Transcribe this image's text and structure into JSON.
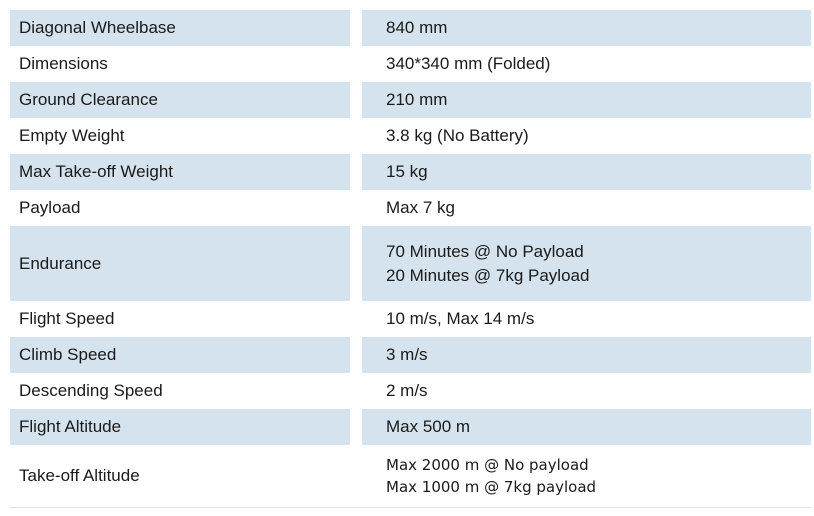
{
  "table": {
    "colors": {
      "row_highlight": "#d5e3ee",
      "text": "#1a1a1a",
      "background": "#ffffff"
    },
    "rows": [
      {
        "label": "Diagonal Wheelbase",
        "value_lines": [
          "840 mm"
        ],
        "highlighted": true
      },
      {
        "label": "Dimensions",
        "value_lines": [
          "340*340 mm (Folded)"
        ],
        "highlighted": false
      },
      {
        "label": "Ground Clearance",
        "value_lines": [
          "210 mm"
        ],
        "highlighted": true
      },
      {
        "label": "Empty Weight",
        "value_lines": [
          "3.8 kg (No Battery)"
        ],
        "highlighted": false
      },
      {
        "label": "Max Take-off Weight",
        "value_lines": [
          "15 kg"
        ],
        "highlighted": true
      },
      {
        "label": "Payload",
        "value_lines": [
          "Max 7 kg"
        ],
        "highlighted": false
      },
      {
        "label": "Endurance",
        "value_lines": [
          "70 Minutes @ No Payload",
          "20 Minutes @ 7kg Payload"
        ],
        "highlighted": true
      },
      {
        "label": "Flight Speed",
        "value_lines": [
          "10 m/s, Max 14 m/s"
        ],
        "highlighted": false
      },
      {
        "label": "Climb Speed",
        "value_lines": [
          "3 m/s"
        ],
        "highlighted": true
      },
      {
        "label": "Descending Speed",
        "value_lines": [
          "2 m/s"
        ],
        "highlighted": false
      },
      {
        "label": "Flight Altitude",
        "value_lines": [
          "Max 500 m"
        ],
        "highlighted": true
      },
      {
        "label": "Take-off Altitude",
        "value_lines": [
          "Max 2000 m @ No payload",
          "Max 1000 m @ 7kg payload"
        ],
        "highlighted": false
      }
    ]
  }
}
